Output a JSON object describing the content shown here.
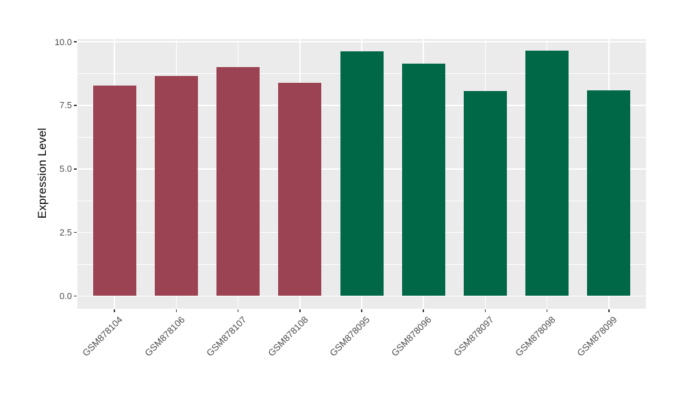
{
  "figure": {
    "background": "#FFFFFF",
    "panel_bg": "#EBEBEB",
    "grid_color": "#FFFFFF",
    "tick_mark_color": "#333333",
    "axis_text_color": "#4D4D4D",
    "axis_title_color": "#000000"
  },
  "chart_data": {
    "type": "bar",
    "title": "",
    "xlabel": "",
    "ylabel": "Expression Level",
    "categories": [
      "GSM878104",
      "GSM878106",
      "GSM878107",
      "GSM878108",
      "GSM878095",
      "GSM878096",
      "GSM878097",
      "GSM878098",
      "GSM878099"
    ],
    "values": [
      8.28,
      8.65,
      9.0,
      8.38,
      9.62,
      9.15,
      8.05,
      9.65,
      8.1
    ],
    "bar_colors": [
      "#9B4353",
      "#9B4353",
      "#9B4353",
      "#9B4353",
      "#006747",
      "#006747",
      "#006747",
      "#006747",
      "#006747"
    ],
    "color_groups": [
      {
        "color": "#9B4353",
        "count": 4
      },
      {
        "color": "#006747",
        "count": 5
      }
    ],
    "ylim": [
      0,
      10
    ],
    "yticks": [
      0.0,
      2.5,
      5.0,
      7.5,
      10.0
    ],
    "ytick_labels": [
      "0.0",
      "2.5",
      "5.0",
      "7.5",
      "10.0"
    ],
    "minor_yticks": [
      1.25,
      3.75,
      6.25,
      8.75
    ],
    "grid": true,
    "legend": false,
    "x_tick_rotation": 45
  }
}
